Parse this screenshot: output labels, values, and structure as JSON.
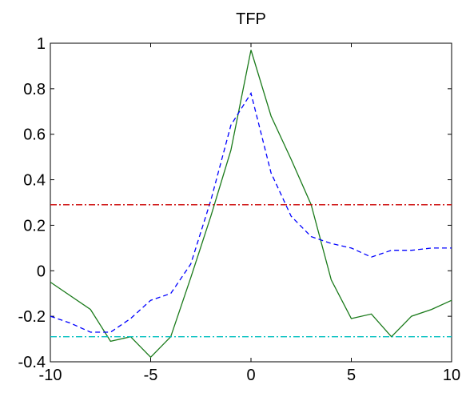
{
  "chart_data": {
    "type": "line",
    "title": "TFP",
    "xlabel": "",
    "ylabel": "",
    "xlim": [
      -10,
      10
    ],
    "ylim": [
      -0.4,
      1
    ],
    "grid": false,
    "x_ticks": [
      "-10",
      "-5",
      "0",
      "5",
      "10"
    ],
    "y_ticks": [
      "-0.4",
      "-0.2",
      "0",
      "0.2",
      "0.4",
      "0.6",
      "0.8",
      "1"
    ],
    "series": [
      {
        "color": "#1a7a1a",
        "style": "solid",
        "x": [
          -10,
          -8,
          -7,
          -6,
          -5,
          -4,
          -3,
          -2,
          -1,
          0,
          1,
          2,
          3,
          4,
          5,
          6,
          7,
          8,
          9,
          10
        ],
        "y": [
          -0.05,
          -0.17,
          -0.31,
          -0.29,
          -0.38,
          -0.29,
          -0.03,
          0.24,
          0.53,
          0.97,
          0.68,
          0.49,
          0.29,
          -0.04,
          -0.21,
          -0.19,
          -0.29,
          -0.2,
          -0.17,
          -0.13
        ]
      },
      {
        "color": "#0000ff",
        "style": "dashed",
        "x": [
          -10,
          -9,
          -8,
          -7,
          -6,
          -5,
          -4,
          -3,
          -2,
          -1,
          0,
          1,
          2,
          3,
          4,
          5,
          6,
          7,
          8,
          9,
          10
        ],
        "y": [
          -0.2,
          -0.23,
          -0.27,
          -0.27,
          -0.21,
          -0.13,
          -0.1,
          0.03,
          0.31,
          0.64,
          0.78,
          0.43,
          0.24,
          0.15,
          0.12,
          0.1,
          0.06,
          0.09,
          0.09,
          0.1,
          0.1
        ]
      },
      {
        "color": "#cc0000",
        "style": "dashdot",
        "x": [
          -10,
          10
        ],
        "y": [
          0.29,
          0.29
        ]
      },
      {
        "color": "#00bfbf",
        "style": "dashdot",
        "x": [
          -10,
          10
        ],
        "y": [
          -0.29,
          -0.29
        ]
      }
    ]
  }
}
